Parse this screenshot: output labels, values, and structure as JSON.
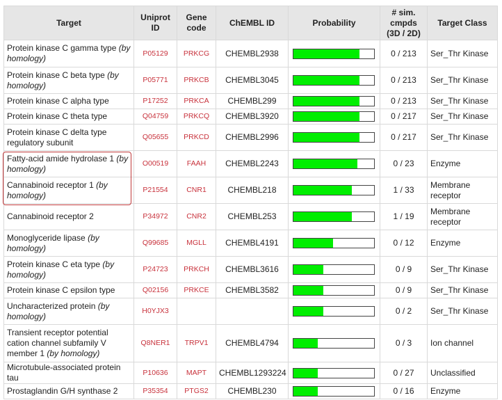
{
  "headers": {
    "target": "Target",
    "uniprot": "Uniprot ID",
    "gene": "Gene code",
    "chembl": "ChEMBL ID",
    "probability": "Probability",
    "sim": "# sim. cmpds (3D / 2D)",
    "class": "Target Class"
  },
  "colors": {
    "bar_fill": "#00ee00",
    "link_red": "#c8323c",
    "highlight_border": "#c0393b",
    "header_bg": "#e6e6e6"
  },
  "rows": [
    {
      "name": "Protein kinase C gamma type",
      "note": "(by homology)",
      "uniprot": "P05129",
      "gene": "PRKCG",
      "chembl": "CHEMBL2938",
      "probability": 0.82,
      "sim": "0 / 213",
      "class": "Ser_Thr Kinase",
      "h": 39
    },
    {
      "name": "Protein kinase C beta type",
      "note": "(by homology)",
      "uniprot": "P05771",
      "gene": "PRKCB",
      "chembl": "CHEMBL3045",
      "probability": 0.82,
      "sim": "0 / 213",
      "class": "Ser_Thr Kinase",
      "h": 38
    },
    {
      "name": "Protein kinase C alpha type",
      "note": "",
      "uniprot": "P17252",
      "gene": "PRKCA",
      "chembl": "CHEMBL299",
      "probability": 0.82,
      "sim": "0 / 213",
      "class": "Ser_Thr Kinase",
      "h": 22
    },
    {
      "name": "Protein kinase C theta type",
      "note": "",
      "uniprot": "Q04759",
      "gene": "PRKCQ",
      "chembl": "CHEMBL3920",
      "probability": 0.82,
      "sim": "0 / 217",
      "class": "Ser_Thr Kinase",
      "h": 22
    },
    {
      "name": "Protein kinase C delta type regulatory subunit",
      "note": "",
      "uniprot": "Q05655",
      "gene": "PRKCD",
      "chembl": "CHEMBL2996",
      "probability": 0.82,
      "sim": "0 / 217",
      "class": "Ser_Thr Kinase",
      "h": 38
    },
    {
      "name": "Fatty-acid amide hydrolase 1",
      "note": "(by homology)",
      "uniprot": "O00519",
      "gene": "FAAH",
      "chembl": "CHEMBL2243",
      "probability": 0.79,
      "sim": "0 / 23",
      "class": "Enzyme",
      "h": 38
    },
    {
      "name": "Cannabinoid receptor 1",
      "note": "(by homology)",
      "uniprot": "P21554",
      "gene": "CNR1",
      "chembl": "CHEMBL218",
      "probability": 0.72,
      "sim": "1 / 33",
      "class": "Membrane receptor",
      "h": 38
    },
    {
      "name": "Cannabinoid receptor 2",
      "note": "",
      "uniprot": "P34972",
      "gene": "CNR2",
      "chembl": "CHEMBL253",
      "probability": 0.72,
      "sim": "1 / 19",
      "class": "Membrane receptor",
      "h": 38
    },
    {
      "name": "Monoglyceride lipase",
      "note": "(by homology)",
      "uniprot": "Q99685",
      "gene": "MGLL",
      "chembl": "CHEMBL4191",
      "probability": 0.49,
      "sim": "0 / 12",
      "class": "Enzyme",
      "h": 38
    },
    {
      "name": "Protein kinase C eta type",
      "note": "(by homology)",
      "uniprot": "P24723",
      "gene": "PRKCH",
      "chembl": "CHEMBL3616",
      "probability": 0.37,
      "sim": "0 / 9",
      "class": "Ser_Thr Kinase",
      "h": 38
    },
    {
      "name": "Protein kinase C epsilon type",
      "note": "",
      "uniprot": "Q02156",
      "gene": "PRKCE",
      "chembl": "CHEMBL3582",
      "probability": 0.37,
      "sim": "0 / 9",
      "class": "Ser_Thr Kinase",
      "h": 22
    },
    {
      "name": "Uncharacterized protein",
      "note": "(by homology)",
      "uniprot": "H0YJX3",
      "gene": "",
      "chembl": "",
      "probability": 0.37,
      "sim": "0 / 2",
      "class": "Ser_Thr Kinase",
      "h": 38
    },
    {
      "name": "Transient receptor potential cation channel subfamily V member 1",
      "note": "(by homology)",
      "uniprot": "Q8NER1",
      "gene": "TRPV1",
      "chembl": "CHEMBL4794",
      "probability": 0.3,
      "sim": "0 / 3",
      "class": "Ion channel",
      "h": 54
    },
    {
      "name": "Microtubule-associated protein tau",
      "note": "",
      "uniprot": "P10636",
      "gene": "MAPT",
      "chembl": "CHEMBL1293224",
      "probability": 0.3,
      "sim": "0 / 27",
      "class": "Unclassified",
      "h": 22
    },
    {
      "name": "Prostaglandin G/H synthase 2",
      "note": "",
      "uniprot": "P35354",
      "gene": "PTGS2",
      "chembl": "CHEMBL230",
      "probability": 0.3,
      "sim": "0 / 16",
      "class": "Enzyme",
      "h": 22
    }
  ]
}
